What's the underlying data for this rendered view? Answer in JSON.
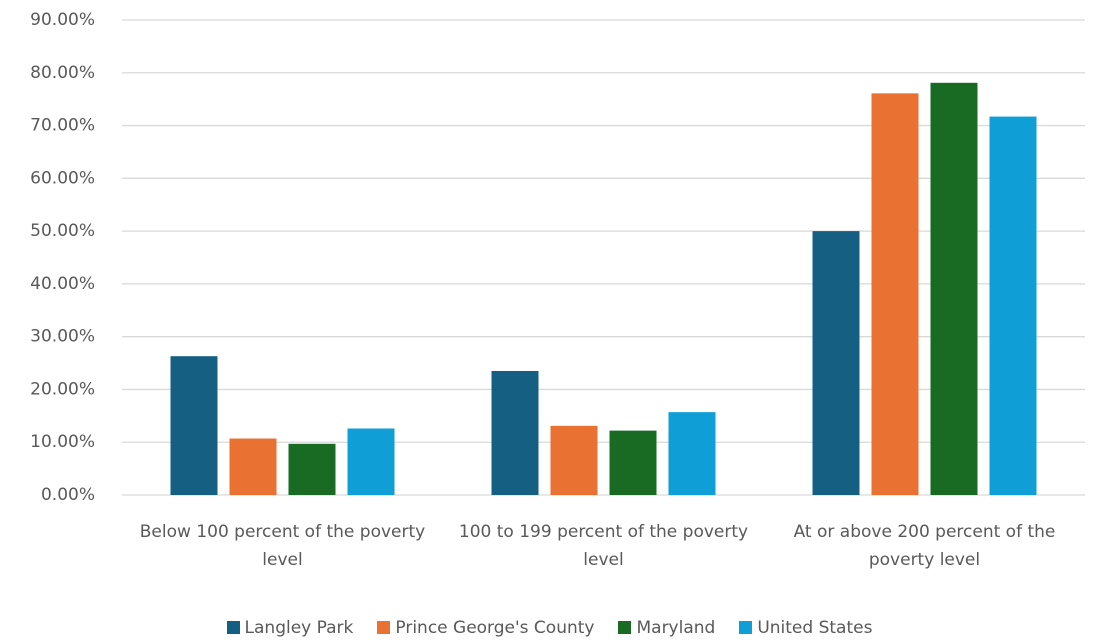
{
  "chart_data": {
    "type": "bar",
    "categories": [
      "Below 100 percent of the poverty level",
      "100 to 199 percent of the poverty level",
      "At or above 200 percent of the poverty level"
    ],
    "series": [
      {
        "name": "Langley Park",
        "color": "#155f82",
        "values": [
          26.3,
          23.5,
          50.0
        ]
      },
      {
        "name": "Prince George's County",
        "color": "#e97132",
        "values": [
          10.7,
          13.1,
          76.1
        ]
      },
      {
        "name": "Maryland",
        "color": "#196b24",
        "values": [
          9.7,
          12.2,
          78.1
        ]
      },
      {
        "name": "United States",
        "color": "#0f9ed5",
        "values": [
          12.6,
          15.7,
          71.7
        ]
      }
    ],
    "ylim": [
      0,
      90
    ],
    "yticks": [
      {
        "value": 0,
        "label": "0.00%"
      },
      {
        "value": 10,
        "label": "10.00%"
      },
      {
        "value": 20,
        "label": "20.00%"
      },
      {
        "value": 30,
        "label": "30.00%"
      },
      {
        "value": 40,
        "label": "40.00%"
      },
      {
        "value": 50,
        "label": "50.00%"
      },
      {
        "value": 60,
        "label": "60.00%"
      },
      {
        "value": 70,
        "label": "70.00%"
      },
      {
        "value": 80,
        "label": "80.00%"
      },
      {
        "value": 90,
        "label": "90.00%"
      }
    ],
    "grid": true,
    "legend": "bottom"
  }
}
